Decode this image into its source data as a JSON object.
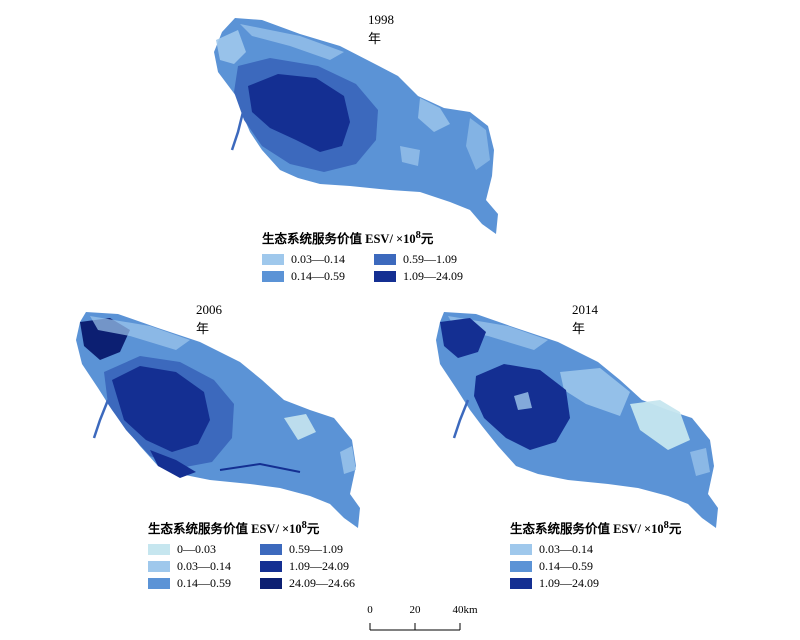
{
  "palette": {
    "c0": "#c6e6ef",
    "c1": "#9fc8ec",
    "c2": "#5b93d6",
    "c3": "#3c69bd",
    "c4": "#142f92",
    "c5": "#0c1f72"
  },
  "maps": [
    {
      "title": "1998年",
      "legend_title": "生态系统服务价值 ESV/ ×10",
      "legend_sup": "8",
      "legend_unit": "元",
      "legend_items": [
        {
          "label": "0.03—0.14",
          "color": "#9fc8ec"
        },
        {
          "label": "0.59—1.09",
          "color": "#3c69bd"
        },
        {
          "label": "0.14—0.59",
          "color": "#5b93d6"
        },
        {
          "label": "1.09—24.09",
          "color": "#142f92"
        }
      ]
    },
    {
      "title": "2006年",
      "legend_title": "生态系统服务价值 ESV/ ×10",
      "legend_sup": "8",
      "legend_unit": "元",
      "legend_items": [
        {
          "label": "0—0.03",
          "color": "#c6e6ef"
        },
        {
          "label": "0.59—1.09",
          "color": "#3c69bd"
        },
        {
          "label": "0.03—0.14",
          "color": "#9fc8ec"
        },
        {
          "label": "1.09—24.09",
          "color": "#142f92"
        },
        {
          "label": "0.14—0.59",
          "color": "#5b93d6"
        },
        {
          "label": "24.09—24.66",
          "color": "#0c1f72"
        }
      ]
    },
    {
      "title": "2014年",
      "legend_title": "生态系统服务价值 ESV/ ×10",
      "legend_sup": "8",
      "legend_unit": "元",
      "legend_items": [
        {
          "label": "0.03—0.14",
          "color": "#9fc8ec"
        },
        {
          "label": "0.14—0.59",
          "color": "#5b93d6"
        },
        {
          "label": "1.09—24.09",
          "color": "#142f92"
        }
      ]
    }
  ],
  "scale": {
    "ticks": [
      "0",
      "20",
      "40km"
    ]
  }
}
